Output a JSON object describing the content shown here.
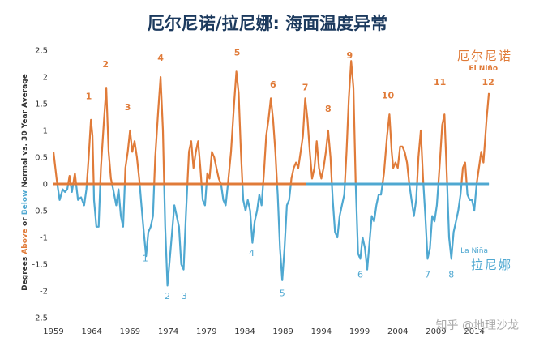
{
  "chart_data": {
    "type": "line",
    "title": "厄尔尼诺/拉尼娜: 海面温度异常",
    "ylabel_parts": [
      "Degrees ",
      "Above",
      " or ",
      "Below",
      " Normal vs. 30 Year Average"
    ],
    "xlim": [
      1959,
      2016
    ],
    "ylim": [
      -2.5,
      2.5
    ],
    "x_ticks": [
      1959,
      1964,
      1969,
      1974,
      1979,
      1984,
      1989,
      1994,
      1999,
      2004,
      2009,
      2014
    ],
    "y_ticks": [
      -2.5,
      -2,
      -1.5,
      -1,
      -0.5,
      0,
      0.5,
      1,
      1.5,
      2,
      2.5
    ],
    "y_tick_labels": [
      "-2.5",
      "-2",
      "-1.5",
      "-1",
      "-0.5",
      "0",
      "0.5",
      "1",
      "1.5",
      "2",
      "2.5"
    ],
    "grid": false,
    "legend": [
      {
        "cn": "厄尔尼诺",
        "en": "El Niño",
        "color": "#e07b39",
        "position": "top-right"
      },
      {
        "cn": "拉尼娜",
        "en": "La Niña",
        "color": "#4fa8d1",
        "position": "bottom-right"
      }
    ],
    "colors": {
      "warm": "#e07b39",
      "cool": "#4fa8d1"
    },
    "series": [
      {
        "values": [
          [
            1959.0,
            0.6
          ],
          [
            1959.4,
            0.1
          ],
          [
            1959.8,
            -0.3
          ],
          [
            1960.2,
            -0.1
          ],
          [
            1960.5,
            -0.15
          ],
          [
            1960.8,
            -0.1
          ],
          [
            1961.1,
            0.15
          ],
          [
            1961.4,
            -0.15
          ],
          [
            1961.8,
            0.2
          ],
          [
            1962.2,
            -0.3
          ],
          [
            1962.6,
            -0.25
          ],
          [
            1963.0,
            -0.4
          ],
          [
            1963.3,
            -0.1
          ],
          [
            1963.6,
            0.5
          ],
          [
            1963.9,
            1.2
          ],
          [
            1964.1,
            0.9
          ],
          [
            1964.3,
            -0.3
          ],
          [
            1964.6,
            -0.8
          ],
          [
            1964.9,
            -0.8
          ],
          [
            1965.2,
            0.3
          ],
          [
            1965.6,
            1.2
          ],
          [
            1965.9,
            1.8
          ],
          [
            1966.2,
            0.6
          ],
          [
            1966.5,
            0.1
          ],
          [
            1966.8,
            -0.1
          ],
          [
            1967.2,
            -0.4
          ],
          [
            1967.5,
            -0.1
          ],
          [
            1967.8,
            -0.6
          ],
          [
            1968.1,
            -0.8
          ],
          [
            1968.4,
            0.3
          ],
          [
            1968.7,
            0.6
          ],
          [
            1969.0,
            1.0
          ],
          [
            1969.3,
            0.6
          ],
          [
            1969.6,
            0.8
          ],
          [
            1969.9,
            0.5
          ],
          [
            1970.2,
            0.1
          ],
          [
            1970.5,
            -0.4
          ],
          [
            1970.8,
            -0.9
          ],
          [
            1971.1,
            -1.35
          ],
          [
            1971.4,
            -0.9
          ],
          [
            1971.7,
            -0.8
          ],
          [
            1972.0,
            -0.6
          ],
          [
            1972.3,
            0.5
          ],
          [
            1972.7,
            1.4
          ],
          [
            1973.0,
            2.0
          ],
          [
            1973.3,
            1.0
          ],
          [
            1973.6,
            -0.8
          ],
          [
            1973.9,
            -1.9
          ],
          [
            1974.2,
            -1.4
          ],
          [
            1974.5,
            -0.9
          ],
          [
            1974.8,
            -0.4
          ],
          [
            1975.1,
            -0.6
          ],
          [
            1975.4,
            -0.8
          ],
          [
            1975.7,
            -1.5
          ],
          [
            1976.0,
            -1.6
          ],
          [
            1976.3,
            -0.6
          ],
          [
            1976.7,
            0.6
          ],
          [
            1977.0,
            0.8
          ],
          [
            1977.3,
            0.3
          ],
          [
            1977.6,
            0.6
          ],
          [
            1977.9,
            0.8
          ],
          [
            1978.2,
            0.3
          ],
          [
            1978.5,
            -0.3
          ],
          [
            1978.8,
            -0.4
          ],
          [
            1979.1,
            0.2
          ],
          [
            1979.4,
            0.1
          ],
          [
            1979.7,
            0.6
          ],
          [
            1980.0,
            0.5
          ],
          [
            1980.3,
            0.3
          ],
          [
            1980.6,
            0.1
          ],
          [
            1980.9,
            0.0
          ],
          [
            1981.2,
            -0.3
          ],
          [
            1981.5,
            -0.4
          ],
          [
            1981.8,
            0.0
          ],
          [
            1982.2,
            0.6
          ],
          [
            1982.6,
            1.5
          ],
          [
            1982.9,
            2.1
          ],
          [
            1983.2,
            1.7
          ],
          [
            1983.5,
            0.6
          ],
          [
            1983.8,
            -0.3
          ],
          [
            1984.1,
            -0.5
          ],
          [
            1984.4,
            -0.3
          ],
          [
            1984.7,
            -0.5
          ],
          [
            1985.0,
            -1.1
          ],
          [
            1985.3,
            -0.7
          ],
          [
            1985.6,
            -0.5
          ],
          [
            1985.9,
            -0.2
          ],
          [
            1986.2,
            -0.4
          ],
          [
            1986.5,
            0.2
          ],
          [
            1986.8,
            0.9
          ],
          [
            1987.1,
            1.2
          ],
          [
            1987.4,
            1.6
          ],
          [
            1987.7,
            1.2
          ],
          [
            1988.0,
            0.6
          ],
          [
            1988.3,
            -0.2
          ],
          [
            1988.6,
            -1.2
          ],
          [
            1988.9,
            -1.8
          ],
          [
            1989.2,
            -1.2
          ],
          [
            1989.5,
            -0.4
          ],
          [
            1989.8,
            -0.3
          ],
          [
            1990.1,
            0.1
          ],
          [
            1990.4,
            0.3
          ],
          [
            1990.7,
            0.4
          ],
          [
            1991.0,
            0.3
          ],
          [
            1991.3,
            0.6
          ],
          [
            1991.6,
            0.9
          ],
          [
            1991.9,
            1.6
          ],
          [
            1992.2,
            1.2
          ],
          [
            1992.5,
            0.6
          ],
          [
            1992.8,
            0.1
          ],
          [
            1993.1,
            0.3
          ],
          [
            1993.4,
            0.8
          ],
          [
            1993.7,
            0.3
          ],
          [
            1994.0,
            0.1
          ],
          [
            1994.3,
            0.3
          ],
          [
            1994.6,
            0.6
          ],
          [
            1994.9,
            1.0
          ],
          [
            1995.2,
            0.5
          ],
          [
            1995.5,
            -0.3
          ],
          [
            1995.8,
            -0.9
          ],
          [
            1996.1,
            -1.0
          ],
          [
            1996.4,
            -0.6
          ],
          [
            1996.7,
            -0.4
          ],
          [
            1997.0,
            -0.2
          ],
          [
            1997.3,
            0.6
          ],
          [
            1997.6,
            1.6
          ],
          [
            1997.9,
            2.3
          ],
          [
            1998.2,
            1.8
          ],
          [
            1998.5,
            0.0
          ],
          [
            1998.8,
            -1.3
          ],
          [
            1999.1,
            -1.4
          ],
          [
            1999.4,
            -1.0
          ],
          [
            1999.7,
            -1.2
          ],
          [
            2000.0,
            -1.6
          ],
          [
            2000.3,
            -1.1
          ],
          [
            2000.6,
            -0.6
          ],
          [
            2000.9,
            -0.7
          ],
          [
            2001.2,
            -0.4
          ],
          [
            2001.5,
            -0.2
          ],
          [
            2001.8,
            -0.2
          ],
          [
            2002.2,
            0.2
          ],
          [
            2002.6,
            0.9
          ],
          [
            2002.9,
            1.3
          ],
          [
            2003.2,
            0.6
          ],
          [
            2003.4,
            0.3
          ],
          [
            2003.7,
            0.4
          ],
          [
            2004.0,
            0.3
          ],
          [
            2004.3,
            0.7
          ],
          [
            2004.6,
            0.7
          ],
          [
            2004.9,
            0.6
          ],
          [
            2005.2,
            0.4
          ],
          [
            2005.5,
            0.0
          ],
          [
            2005.8,
            -0.3
          ],
          [
            2006.1,
            -0.6
          ],
          [
            2006.4,
            -0.3
          ],
          [
            2006.7,
            0.5
          ],
          [
            2007.0,
            1.0
          ],
          [
            2007.3,
            0.1
          ],
          [
            2007.6,
            -0.6
          ],
          [
            2007.9,
            -1.4
          ],
          [
            2008.2,
            -1.2
          ],
          [
            2008.5,
            -0.6
          ],
          [
            2008.8,
            -0.7
          ],
          [
            2009.1,
            -0.4
          ],
          [
            2009.5,
            0.4
          ],
          [
            2009.8,
            1.1
          ],
          [
            2010.1,
            1.3
          ],
          [
            2010.4,
            0.2
          ],
          [
            2010.7,
            -1.0
          ],
          [
            2011.0,
            -1.4
          ],
          [
            2011.3,
            -0.9
          ],
          [
            2011.6,
            -0.7
          ],
          [
            2011.9,
            -0.5
          ],
          [
            2012.2,
            -0.2
          ],
          [
            2012.5,
            0.3
          ],
          [
            2012.8,
            0.4
          ],
          [
            2013.1,
            -0.2
          ],
          [
            2013.4,
            -0.3
          ],
          [
            2013.7,
            -0.3
          ],
          [
            2014.0,
            -0.5
          ],
          [
            2014.3,
            0.0
          ],
          [
            2014.6,
            0.3
          ],
          [
            2014.9,
            0.6
          ],
          [
            2015.2,
            0.4
          ],
          [
            2015.6,
            1.2
          ],
          [
            2015.9,
            1.7
          ]
        ]
      }
    ],
    "warm_events": [
      {
        "label": "1",
        "x": 1963.6,
        "y": 1.58
      },
      {
        "label": "2",
        "x": 1965.8,
        "y": 2.18
      },
      {
        "label": "3",
        "x": 1968.7,
        "y": 1.38
      },
      {
        "label": "4",
        "x": 1973.0,
        "y": 2.3
      },
      {
        "label": "5",
        "x": 1983.0,
        "y": 2.4
      },
      {
        "label": "6",
        "x": 1987.7,
        "y": 1.8
      },
      {
        "label": "7",
        "x": 1991.9,
        "y": 1.75
      },
      {
        "label": "8",
        "x": 1994.9,
        "y": 1.35
      },
      {
        "label": "9",
        "x": 1997.7,
        "y": 2.35
      },
      {
        "label": "10",
        "x": 2002.7,
        "y": 1.6
      },
      {
        "label": "11",
        "x": 2009.5,
        "y": 1.85
      },
      {
        "label": "12",
        "x": 2015.8,
        "y": 1.85
      }
    ],
    "cool_events": [
      {
        "label": "1",
        "x": 1971.0,
        "y": -1.45
      },
      {
        "label": "2",
        "x": 1973.9,
        "y": -2.15
      },
      {
        "label": "3",
        "x": 1976.1,
        "y": -2.15
      },
      {
        "label": "4",
        "x": 1984.9,
        "y": -1.35
      },
      {
        "label": "5",
        "x": 1988.9,
        "y": -2.1
      },
      {
        "label": "6",
        "x": 1999.1,
        "y": -1.75
      },
      {
        "label": "7",
        "x": 2007.9,
        "y": -1.75
      },
      {
        "label": "8",
        "x": 2011.0,
        "y": -1.75
      }
    ]
  },
  "watermark": "知乎 @地理沙龙"
}
